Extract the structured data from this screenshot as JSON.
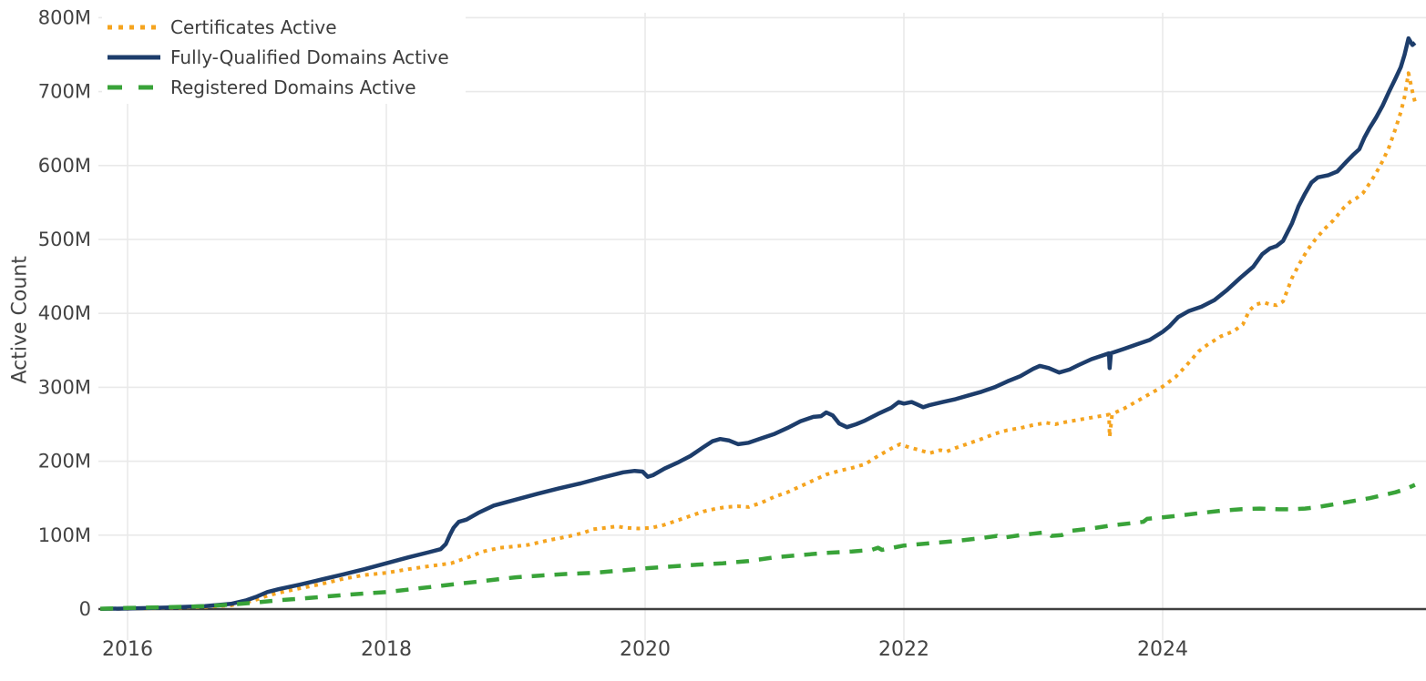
{
  "chart_data": {
    "type": "line",
    "title": "",
    "xlabel": "",
    "ylabel": "Active Count",
    "unit": "millions",
    "grid": true,
    "legend_position": "top-left",
    "xlim": [
      2015.775,
      2026.035
    ],
    "ylim": [
      0,
      811
    ],
    "x_ticks": [
      2016,
      2018,
      2020,
      2022,
      2024
    ],
    "x_tick_labels": [
      "2016",
      "2018",
      "2020",
      "2022",
      "2024"
    ],
    "y_ticks": [
      0,
      100,
      200,
      300,
      400,
      500,
      600,
      700,
      800
    ],
    "y_tick_labels": [
      "0",
      "100M",
      "200M",
      "300M",
      "400M",
      "500M",
      "600M",
      "700M",
      "800M"
    ],
    "series": [
      {
        "name": "Certificates Active",
        "color": "#F5A41F",
        "style": "dotted",
        "points": [
          [
            2015.79,
            0.1
          ],
          [
            2016.0,
            0.5
          ],
          [
            2016.3,
            1.5
          ],
          [
            2016.6,
            3
          ],
          [
            2016.8,
            5
          ],
          [
            2016.92,
            9
          ],
          [
            2017.0,
            13
          ],
          [
            2017.08,
            18
          ],
          [
            2017.17,
            22
          ],
          [
            2017.33,
            28
          ],
          [
            2017.5,
            34
          ],
          [
            2017.67,
            41
          ],
          [
            2017.83,
            46
          ],
          [
            2018.0,
            49
          ],
          [
            2018.17,
            54
          ],
          [
            2018.33,
            58
          ],
          [
            2018.5,
            62
          ],
          [
            2018.63,
            70
          ],
          [
            2018.75,
            78
          ],
          [
            2018.88,
            83
          ],
          [
            2019.0,
            85
          ],
          [
            2019.1,
            87
          ],
          [
            2019.25,
            93
          ],
          [
            2019.4,
            98
          ],
          [
            2019.52,
            103
          ],
          [
            2019.6,
            108
          ],
          [
            2019.7,
            110
          ],
          [
            2019.78,
            112
          ],
          [
            2019.85,
            110
          ],
          [
            2019.95,
            109
          ],
          [
            2020.05,
            110
          ],
          [
            2020.15,
            114
          ],
          [
            2020.25,
            120
          ],
          [
            2020.35,
            126
          ],
          [
            2020.45,
            132
          ],
          [
            2020.55,
            136
          ],
          [
            2020.63,
            138
          ],
          [
            2020.72,
            139
          ],
          [
            2020.8,
            138
          ],
          [
            2020.9,
            144
          ],
          [
            2021.0,
            152
          ],
          [
            2021.1,
            158
          ],
          [
            2021.2,
            166
          ],
          [
            2021.3,
            174
          ],
          [
            2021.4,
            182
          ],
          [
            2021.5,
            187
          ],
          [
            2021.6,
            191
          ],
          [
            2021.7,
            196
          ],
          [
            2021.8,
            207
          ],
          [
            2021.9,
            217
          ],
          [
            2021.97,
            223
          ],
          [
            2022.02,
            220
          ],
          [
            2022.1,
            216
          ],
          [
            2022.2,
            211
          ],
          [
            2022.28,
            215
          ],
          [
            2022.33,
            213
          ],
          [
            2022.4,
            218
          ],
          [
            2022.5,
            224
          ],
          [
            2022.6,
            230
          ],
          [
            2022.7,
            237
          ],
          [
            2022.8,
            242
          ],
          [
            2022.9,
            245
          ],
          [
            2023.0,
            249
          ],
          [
            2023.1,
            252
          ],
          [
            2023.17,
            250
          ],
          [
            2023.25,
            253
          ],
          [
            2023.35,
            256
          ],
          [
            2023.45,
            259
          ],
          [
            2023.55,
            262
          ],
          [
            2023.585,
            263
          ],
          [
            2023.59,
            233
          ],
          [
            2023.61,
            264
          ],
          [
            2023.7,
            271
          ],
          [
            2023.8,
            281
          ],
          [
            2023.9,
            291
          ],
          [
            2024.0,
            301
          ],
          [
            2024.1,
            314
          ],
          [
            2024.18,
            329
          ],
          [
            2024.28,
            349
          ],
          [
            2024.35,
            358
          ],
          [
            2024.45,
            369
          ],
          [
            2024.55,
            376
          ],
          [
            2024.62,
            385
          ],
          [
            2024.67,
            404
          ],
          [
            2024.72,
            412
          ],
          [
            2024.78,
            415
          ],
          [
            2024.83,
            412
          ],
          [
            2024.88,
            411
          ],
          [
            2024.93,
            416
          ],
          [
            2025.0,
            448
          ],
          [
            2025.06,
            468
          ],
          [
            2025.12,
            486
          ],
          [
            2025.18,
            500
          ],
          [
            2025.25,
            514
          ],
          [
            2025.32,
            526
          ],
          [
            2025.4,
            543
          ],
          [
            2025.45,
            551
          ],
          [
            2025.5,
            556
          ],
          [
            2025.55,
            563
          ],
          [
            2025.6,
            576
          ],
          [
            2025.65,
            590
          ],
          [
            2025.7,
            606
          ],
          [
            2025.75,
            625
          ],
          [
            2025.8,
            650
          ],
          [
            2025.84,
            672
          ],
          [
            2025.87,
            693
          ],
          [
            2025.9,
            725
          ],
          [
            2025.93,
            700
          ],
          [
            2025.95,
            686
          ]
        ]
      },
      {
        "name": "Fully-Qualified Domains Active",
        "color": "#1D3D6B",
        "style": "solid",
        "points": [
          [
            2015.79,
            0.2
          ],
          [
            2016.0,
            0.8
          ],
          [
            2016.3,
            2
          ],
          [
            2016.6,
            4
          ],
          [
            2016.8,
            7
          ],
          [
            2016.92,
            12
          ],
          [
            2017.0,
            17
          ],
          [
            2017.08,
            23
          ],
          [
            2017.17,
            27
          ],
          [
            2017.33,
            33
          ],
          [
            2017.5,
            40
          ],
          [
            2017.67,
            47
          ],
          [
            2017.83,
            54
          ],
          [
            2018.0,
            62
          ],
          [
            2018.17,
            70
          ],
          [
            2018.33,
            77
          ],
          [
            2018.42,
            81
          ],
          [
            2018.46,
            88
          ],
          [
            2018.49,
            100
          ],
          [
            2018.52,
            110
          ],
          [
            2018.56,
            118
          ],
          [
            2018.62,
            121
          ],
          [
            2018.71,
            130
          ],
          [
            2018.83,
            140
          ],
          [
            2019.0,
            148
          ],
          [
            2019.17,
            156
          ],
          [
            2019.33,
            163
          ],
          [
            2019.5,
            170
          ],
          [
            2019.67,
            178
          ],
          [
            2019.83,
            185
          ],
          [
            2019.92,
            187
          ],
          [
            2019.98,
            186
          ],
          [
            2020.02,
            179
          ],
          [
            2020.06,
            181
          ],
          [
            2020.15,
            190
          ],
          [
            2020.25,
            198
          ],
          [
            2020.35,
            207
          ],
          [
            2020.45,
            219
          ],
          [
            2020.52,
            227
          ],
          [
            2020.58,
            230
          ],
          [
            2020.65,
            228
          ],
          [
            2020.72,
            223
          ],
          [
            2020.8,
            225
          ],
          [
            2020.9,
            231
          ],
          [
            2021.0,
            237
          ],
          [
            2021.1,
            245
          ],
          [
            2021.2,
            254
          ],
          [
            2021.3,
            260
          ],
          [
            2021.36,
            261
          ],
          [
            2021.4,
            266
          ],
          [
            2021.45,
            262
          ],
          [
            2021.5,
            251
          ],
          [
            2021.56,
            246
          ],
          [
            2021.63,
            250
          ],
          [
            2021.7,
            255
          ],
          [
            2021.8,
            264
          ],
          [
            2021.9,
            272
          ],
          [
            2021.96,
            280
          ],
          [
            2022.0,
            278
          ],
          [
            2022.06,
            280
          ],
          [
            2022.1,
            277
          ],
          [
            2022.15,
            273
          ],
          [
            2022.2,
            276
          ],
          [
            2022.3,
            280
          ],
          [
            2022.4,
            284
          ],
          [
            2022.5,
            289
          ],
          [
            2022.6,
            294
          ],
          [
            2022.7,
            300
          ],
          [
            2022.8,
            308
          ],
          [
            2022.9,
            315
          ],
          [
            2023.0,
            325
          ],
          [
            2023.05,
            329
          ],
          [
            2023.12,
            326
          ],
          [
            2023.2,
            320
          ],
          [
            2023.28,
            324
          ],
          [
            2023.35,
            330
          ],
          [
            2023.45,
            338
          ],
          [
            2023.55,
            344
          ],
          [
            2023.585,
            346
          ],
          [
            2023.59,
            326
          ],
          [
            2023.6,
            346
          ],
          [
            2023.7,
            352
          ],
          [
            2023.8,
            358
          ],
          [
            2023.9,
            364
          ],
          [
            2024.0,
            375
          ],
          [
            2024.05,
            382
          ],
          [
            2024.12,
            395
          ],
          [
            2024.2,
            403
          ],
          [
            2024.3,
            409
          ],
          [
            2024.4,
            418
          ],
          [
            2024.5,
            432
          ],
          [
            2024.6,
            448
          ],
          [
            2024.7,
            463
          ],
          [
            2024.77,
            480
          ],
          [
            2024.83,
            488
          ],
          [
            2024.88,
            491
          ],
          [
            2024.93,
            498
          ],
          [
            2025.0,
            522
          ],
          [
            2025.05,
            545
          ],
          [
            2025.1,
            562
          ],
          [
            2025.15,
            577
          ],
          [
            2025.2,
            584
          ],
          [
            2025.28,
            587
          ],
          [
            2025.35,
            592
          ],
          [
            2025.42,
            605
          ],
          [
            2025.47,
            614
          ],
          [
            2025.52,
            622
          ],
          [
            2025.56,
            638
          ],
          [
            2025.6,
            651
          ],
          [
            2025.65,
            665
          ],
          [
            2025.7,
            681
          ],
          [
            2025.75,
            700
          ],
          [
            2025.8,
            718
          ],
          [
            2025.84,
            733
          ],
          [
            2025.87,
            750
          ],
          [
            2025.9,
            772
          ],
          [
            2025.93,
            763
          ],
          [
            2025.95,
            766
          ]
        ]
      },
      {
        "name": "Registered Domains Active",
        "color": "#39A339",
        "style": "dashed",
        "points": [
          [
            2015.79,
            0.5
          ],
          [
            2016.0,
            1.5
          ],
          [
            2016.3,
            2.5
          ],
          [
            2016.6,
            4
          ],
          [
            2016.8,
            6
          ],
          [
            2017.0,
            9
          ],
          [
            2017.17,
            12
          ],
          [
            2017.33,
            14
          ],
          [
            2017.5,
            16.5
          ],
          [
            2017.67,
            19
          ],
          [
            2017.83,
            21
          ],
          [
            2018.0,
            23
          ],
          [
            2018.2,
            27
          ],
          [
            2018.4,
            31
          ],
          [
            2018.54,
            34
          ],
          [
            2018.7,
            37
          ],
          [
            2018.85,
            40
          ],
          [
            2019.0,
            43
          ],
          [
            2019.2,
            45.5
          ],
          [
            2019.4,
            47.5
          ],
          [
            2019.6,
            49
          ],
          [
            2019.8,
            52
          ],
          [
            2020.0,
            55
          ],
          [
            2020.2,
            57.5
          ],
          [
            2020.4,
            60
          ],
          [
            2020.6,
            62
          ],
          [
            2020.8,
            65
          ],
          [
            2021.0,
            70
          ],
          [
            2021.2,
            73
          ],
          [
            2021.4,
            76
          ],
          [
            2021.6,
            78
          ],
          [
            2021.75,
            80
          ],
          [
            2021.8,
            83
          ],
          [
            2021.83,
            80
          ],
          [
            2022.0,
            86
          ],
          [
            2022.2,
            89
          ],
          [
            2022.4,
            92
          ],
          [
            2022.6,
            96
          ],
          [
            2022.72,
            99
          ],
          [
            2022.75,
            96
          ],
          [
            2022.9,
            100
          ],
          [
            2023.0,
            102
          ],
          [
            2023.1,
            104
          ],
          [
            2023.14,
            99
          ],
          [
            2023.22,
            100
          ],
          [
            2023.3,
            106
          ],
          [
            2023.45,
            109
          ],
          [
            2023.6,
            113
          ],
          [
            2023.75,
            116
          ],
          [
            2023.85,
            118
          ],
          [
            2023.88,
            122
          ],
          [
            2024.0,
            124
          ],
          [
            2024.15,
            127
          ],
          [
            2024.3,
            130
          ],
          [
            2024.45,
            133
          ],
          [
            2024.6,
            135
          ],
          [
            2024.75,
            136
          ],
          [
            2024.9,
            135
          ],
          [
            2025.0,
            135
          ],
          [
            2025.1,
            136
          ],
          [
            2025.2,
            138
          ],
          [
            2025.3,
            141
          ],
          [
            2025.4,
            144
          ],
          [
            2025.5,
            147
          ],
          [
            2025.6,
            150
          ],
          [
            2025.7,
            154
          ],
          [
            2025.8,
            158
          ],
          [
            2025.87,
            162
          ],
          [
            2025.95,
            168
          ]
        ]
      }
    ],
    "colors": {
      "grid": "#E9E9E9",
      "zero_line": "#3F3F3F",
      "text": "#444444"
    }
  }
}
